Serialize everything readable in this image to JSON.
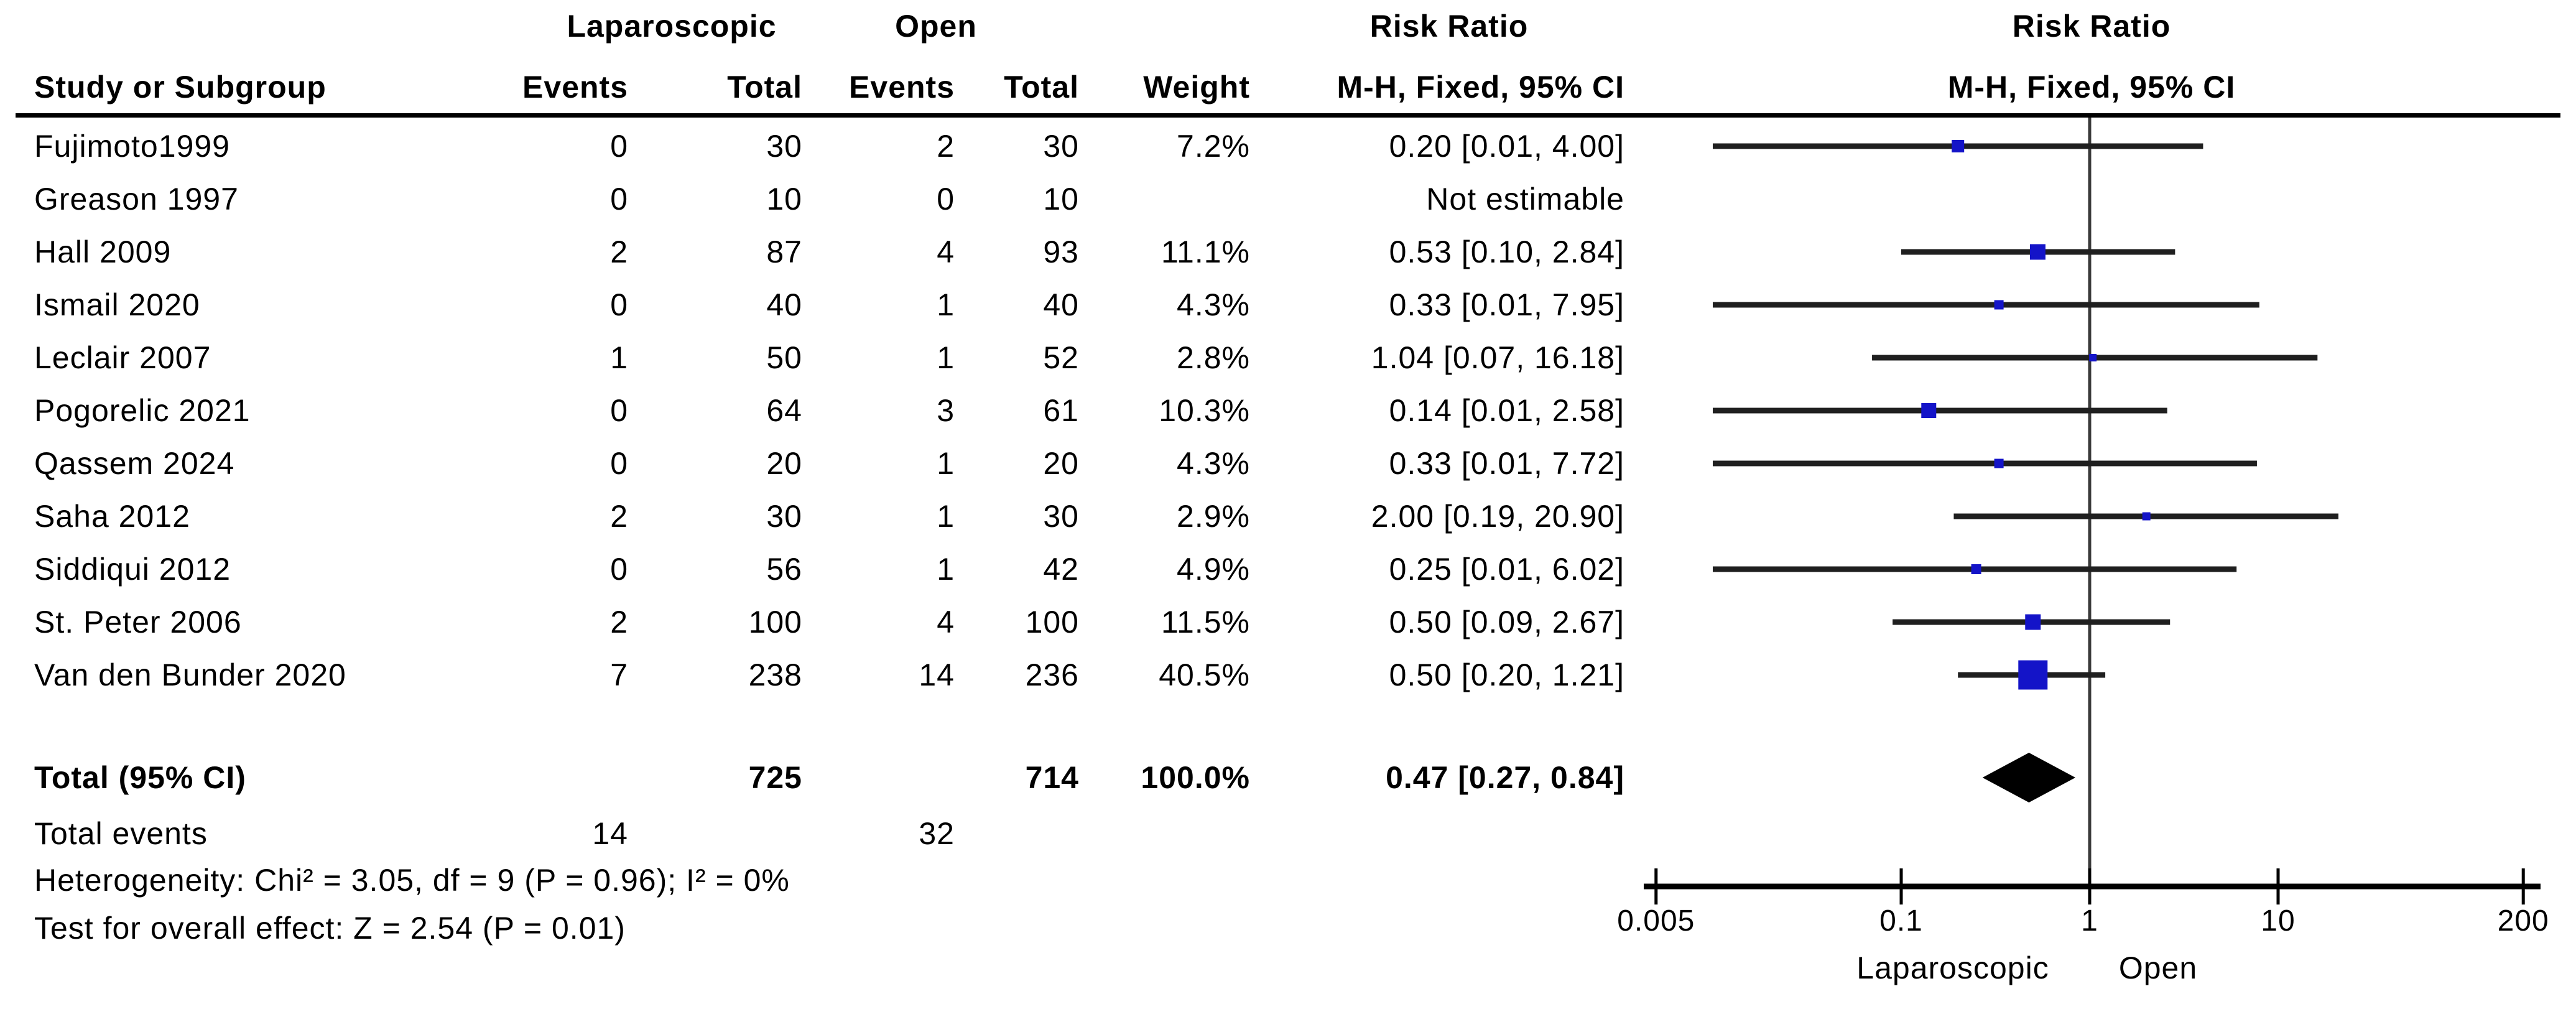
{
  "header": {
    "group_left": "Laparoscopic",
    "group_right": "Open",
    "risk_ratio_left": "Risk Ratio",
    "risk_ratio_right": "Risk Ratio",
    "study_col": "Study or Subgroup",
    "events_col_lap": "Events",
    "total_col_lap": "Total",
    "events_col_open": "Events",
    "total_col_open": "Total",
    "weight_col": "Weight",
    "method_col_left": "M-H, Fixed, 95% CI",
    "method_col_right": "M-H, Fixed, 95% CI"
  },
  "footer": {
    "total_label": "Total (95% CI)",
    "total_events_label": "Total events",
    "heterogeneity": "Heterogeneity: Chi² = 3.05, df = 9 (P = 0.96); I² = 0%",
    "overall_effect": "Test for overall effect: Z = 2.54 (P = 0.01)"
  },
  "colors": {
    "square": "#1414c8",
    "diamond": "#000000",
    "ci_line": "#1f1f1f",
    "null_line": "#3a3a3a",
    "axis": "#000000"
  },
  "chart_data": {
    "type": "forest",
    "title": "Risk Ratio",
    "effect_measure": "M-H, Fixed, 95% CI",
    "x_scale": "log",
    "x_ticks": [
      "0.005",
      "0.1",
      "1",
      "10",
      "200"
    ],
    "x_tick_values": [
      0.005,
      0.1,
      1,
      10,
      200
    ],
    "xlim": [
      0.005,
      200
    ],
    "null_value": 1,
    "favours_left": "Laparoscopic",
    "favours_right": "Open",
    "studies": [
      {
        "name": "Fujimoto1999",
        "lap_events": "0",
        "lap_total": "30",
        "open_events": "2",
        "open_total": "30",
        "weight_label": "7.2%",
        "weight_pct": 7.2,
        "rr": 0.2,
        "ci_low": 0.01,
        "ci_high": 4.0,
        "label": "0.20 [0.01, 4.00]"
      },
      {
        "name": "Greason 1997",
        "lap_events": "0",
        "lap_total": "10",
        "open_events": "0",
        "open_total": "10",
        "weight_label": "",
        "weight_pct": null,
        "rr": null,
        "ci_low": null,
        "ci_high": null,
        "label": "Not estimable"
      },
      {
        "name": "Hall 2009",
        "lap_events": "2",
        "lap_total": "87",
        "open_events": "4",
        "open_total": "93",
        "weight_label": "11.1%",
        "weight_pct": 11.1,
        "rr": 0.53,
        "ci_low": 0.1,
        "ci_high": 2.84,
        "label": "0.53 [0.10, 2.84]"
      },
      {
        "name": "Ismail 2020",
        "lap_events": "0",
        "lap_total": "40",
        "open_events": "1",
        "open_total": "40",
        "weight_label": "4.3%",
        "weight_pct": 4.3,
        "rr": 0.33,
        "ci_low": 0.01,
        "ci_high": 7.95,
        "label": "0.33 [0.01, 7.95]"
      },
      {
        "name": "Leclair 2007",
        "lap_events": "1",
        "lap_total": "50",
        "open_events": "1",
        "open_total": "52",
        "weight_label": "2.8%",
        "weight_pct": 2.8,
        "rr": 1.04,
        "ci_low": 0.07,
        "ci_high": 16.18,
        "label": "1.04 [0.07, 16.18]"
      },
      {
        "name": "Pogorelic 2021",
        "lap_events": "0",
        "lap_total": "64",
        "open_events": "3",
        "open_total": "61",
        "weight_label": "10.3%",
        "weight_pct": 10.3,
        "rr": 0.14,
        "ci_low": 0.01,
        "ci_high": 2.58,
        "label": "0.14 [0.01, 2.58]"
      },
      {
        "name": "Qassem 2024",
        "lap_events": "0",
        "lap_total": "20",
        "open_events": "1",
        "open_total": "20",
        "weight_label": "4.3%",
        "weight_pct": 4.3,
        "rr": 0.33,
        "ci_low": 0.01,
        "ci_high": 7.72,
        "label": "0.33 [0.01, 7.72]"
      },
      {
        "name": "Saha 2012",
        "lap_events": "2",
        "lap_total": "30",
        "open_events": "1",
        "open_total": "30",
        "weight_label": "2.9%",
        "weight_pct": 2.9,
        "rr": 2.0,
        "ci_low": 0.19,
        "ci_high": 20.9,
        "label": "2.00 [0.19, 20.90]"
      },
      {
        "name": "Siddiqui 2012",
        "lap_events": "0",
        "lap_total": "56",
        "open_events": "1",
        "open_total": "42",
        "weight_label": "4.9%",
        "weight_pct": 4.9,
        "rr": 0.25,
        "ci_low": 0.01,
        "ci_high": 6.02,
        "label": "0.25 [0.01, 6.02]"
      },
      {
        "name": "St. Peter 2006",
        "lap_events": "2",
        "lap_total": "100",
        "open_events": "4",
        "open_total": "100",
        "weight_label": "11.5%",
        "weight_pct": 11.5,
        "rr": 0.5,
        "ci_low": 0.09,
        "ci_high": 2.67,
        "label": "0.50 [0.09, 2.67]"
      },
      {
        "name": "Van den Bunder 2020",
        "lap_events": "7",
        "lap_total": "238",
        "open_events": "14",
        "open_total": "236",
        "weight_label": "40.5%",
        "weight_pct": 40.5,
        "rr": 0.5,
        "ci_low": 0.2,
        "ci_high": 1.21,
        "label": "0.50 [0.20, 1.21]"
      }
    ],
    "total": {
      "lap_total": "725",
      "open_total": "714",
      "weight_label": "100.0%",
      "rr": 0.47,
      "ci_low": 0.27,
      "ci_high": 0.84,
      "label": "0.47 [0.27, 0.84]"
    },
    "total_events": {
      "lap": "14",
      "open": "32"
    }
  }
}
